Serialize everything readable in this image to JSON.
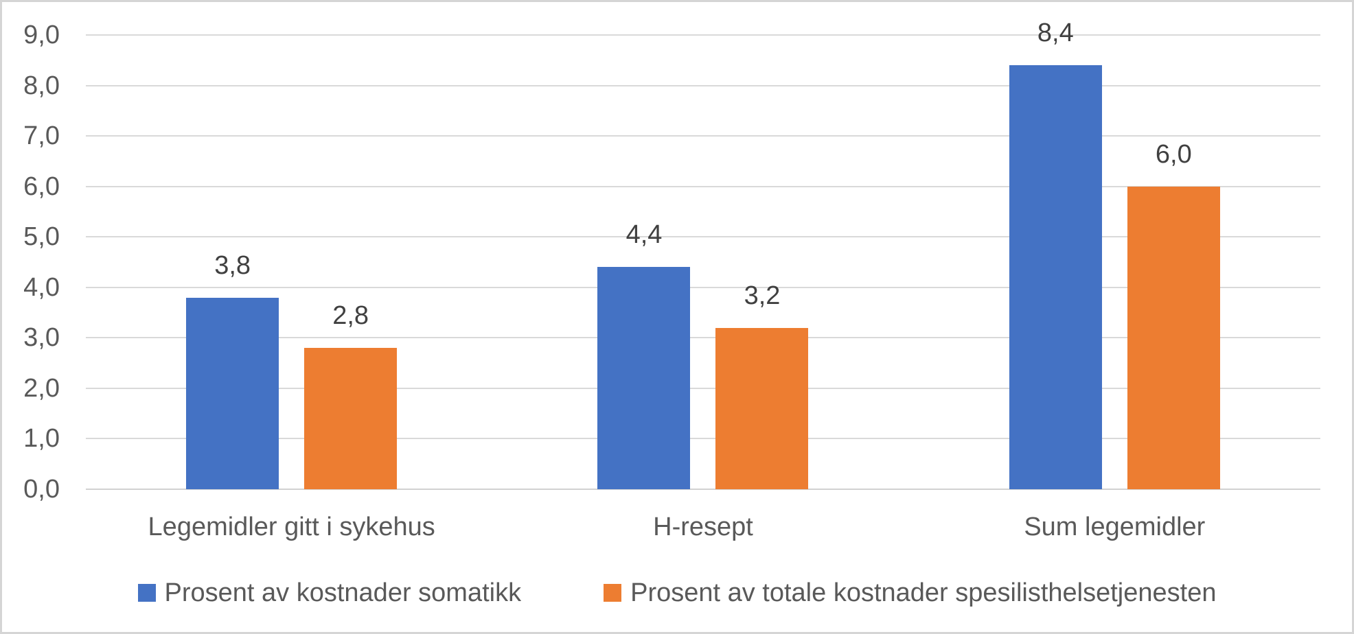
{
  "chart_data": {
    "type": "bar",
    "categories": [
      "Legemidler gitt i sykehus",
      "H-resept",
      "Sum legemidler"
    ],
    "series": [
      {
        "name": "Prosent av kostnader somatikk",
        "color": "#4472C4",
        "values": [
          3.8,
          4.4,
          8.4
        ],
        "data_labels": [
          "3,8",
          "4,4",
          "8,4"
        ]
      },
      {
        "name": "Prosent av totale kostnader spesilisthelsetjenesten",
        "color": "#ED7D31",
        "values": [
          2.8,
          3.2,
          6.0
        ],
        "data_labels": [
          "2,8",
          "3,2",
          "6,0"
        ]
      }
    ],
    "y_axis": {
      "min": 0,
      "max": 9,
      "step": 1,
      "tick_labels": [
        "0,0",
        "1,0",
        "2,0",
        "3,0",
        "4,0",
        "5,0",
        "6,0",
        "7,0",
        "8,0",
        "9,0"
      ]
    },
    "grid": true,
    "legend_position": "bottom",
    "value_format": "decimal-comma"
  },
  "colors": {
    "background": "#FFFFFF",
    "border": "#D5D5D5",
    "gridline": "#D9D9D9",
    "axis_line": "#D2D2D2",
    "axis_text": "#595959",
    "category_text": "#595959",
    "legend_text": "#595959",
    "data_label_text": "#404040",
    "series_blue": "#4472C4",
    "series_orange": "#ED7D31"
  }
}
